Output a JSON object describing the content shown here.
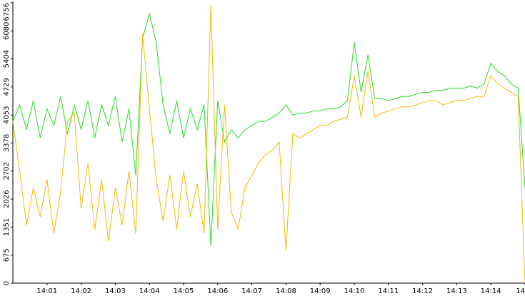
{
  "chart_data": {
    "type": "line",
    "x": [
      0,
      0.2,
      0.4,
      0.6,
      0.8,
      1,
      1.2,
      1.4,
      1.6,
      1.8,
      2,
      2.2,
      2.4,
      2.6,
      2.8,
      3,
      3.2,
      3.4,
      3.6,
      3.8,
      4,
      4.2,
      4.4,
      4.6,
      4.8,
      5,
      5.2,
      5.4,
      5.6,
      5.8,
      6,
      6.2,
      6.4,
      6.6,
      6.8,
      7,
      7.2,
      7.4,
      7.6,
      7.8,
      8,
      8.2,
      8.4,
      8.6,
      8.8,
      9,
      9.2,
      9.4,
      9.6,
      9.8,
      10,
      10.2,
      10.4,
      10.6,
      10.8,
      11,
      11.2,
      11.4,
      11.6,
      11.8,
      12,
      12.2,
      12.4,
      12.6,
      12.8,
      13,
      13.2,
      13.4,
      13.6,
      13.8,
      14,
      14.2,
      14.4,
      14.6,
      14.8,
      15
    ],
    "series": [
      {
        "color": "#22dd22",
        "values": [
          3900,
          4300,
          3700,
          4400,
          3500,
          4200,
          3800,
          4500,
          3600,
          4300,
          3700,
          4400,
          3500,
          4300,
          3800,
          4500,
          3400,
          4200,
          2600,
          5900,
          6500,
          5800,
          4300,
          3600,
          4400,
          3500,
          4200,
          3700,
          4300,
          900,
          4400,
          3400,
          3700,
          3500,
          3700,
          3800,
          3900,
          3900,
          4000,
          4100,
          4300,
          4050,
          4100,
          4100,
          4150,
          4150,
          4200,
          4200,
          4250,
          4400,
          5800,
          4600,
          5500,
          4450,
          4450,
          4400,
          4450,
          4500,
          4500,
          4550,
          4600,
          4600,
          4650,
          4650,
          4700,
          4700,
          4700,
          4750,
          4700,
          4800,
          5300,
          5100,
          5000,
          4800,
          4700,
          2300
        ]
      },
      {
        "color": "#f5b800",
        "values": [
          3900,
          2700,
          1400,
          2300,
          1600,
          2500,
          1200,
          2200,
          3900,
          4100,
          1800,
          2900,
          1300,
          2500,
          1000,
          2300,
          1400,
          2700,
          1200,
          6000,
          4200,
          2500,
          1500,
          2600,
          1300,
          2700,
          1600,
          2400,
          1200,
          6700,
          1300,
          4300,
          1700,
          1300,
          2300,
          2600,
          2900,
          3100,
          3200,
          3400,
          800,
          3600,
          3500,
          3600,
          3700,
          3800,
          3800,
          3900,
          3950,
          4000,
          5000,
          4000,
          5100,
          4000,
          4100,
          4150,
          4200,
          4250,
          4250,
          4300,
          4350,
          4400,
          4400,
          4300,
          4350,
          4400,
          4400,
          4450,
          4500,
          4500,
          5000,
          4800,
          4700,
          4600,
          4500,
          0
        ]
      }
    ],
    "xlim": [
      0,
      15
    ],
    "xticks": [
      {
        "value": 1,
        "label": "14:01"
      },
      {
        "value": 2,
        "label": "14:02"
      },
      {
        "value": 3,
        "label": "14:03"
      },
      {
        "value": 4,
        "label": "14:04"
      },
      {
        "value": 5,
        "label": "14:05"
      },
      {
        "value": 6,
        "label": "14:06"
      },
      {
        "value": 7,
        "label": "14:07"
      },
      {
        "value": 8,
        "label": "14:08"
      },
      {
        "value": 9,
        "label": "14:09"
      },
      {
        "value": 10,
        "label": "14:10"
      },
      {
        "value": 11,
        "label": "14:11"
      },
      {
        "value": 12,
        "label": "14:12"
      },
      {
        "value": 13,
        "label": "14:13"
      },
      {
        "value": 14,
        "label": "14:14"
      },
      {
        "value": 15,
        "label": "14"
      }
    ],
    "ylim": [
      0,
      6756
    ],
    "yticks": [
      0,
      675,
      1351,
      2026,
      2702,
      3378,
      4053,
      4729,
      5404,
      6080,
      6756
    ]
  }
}
